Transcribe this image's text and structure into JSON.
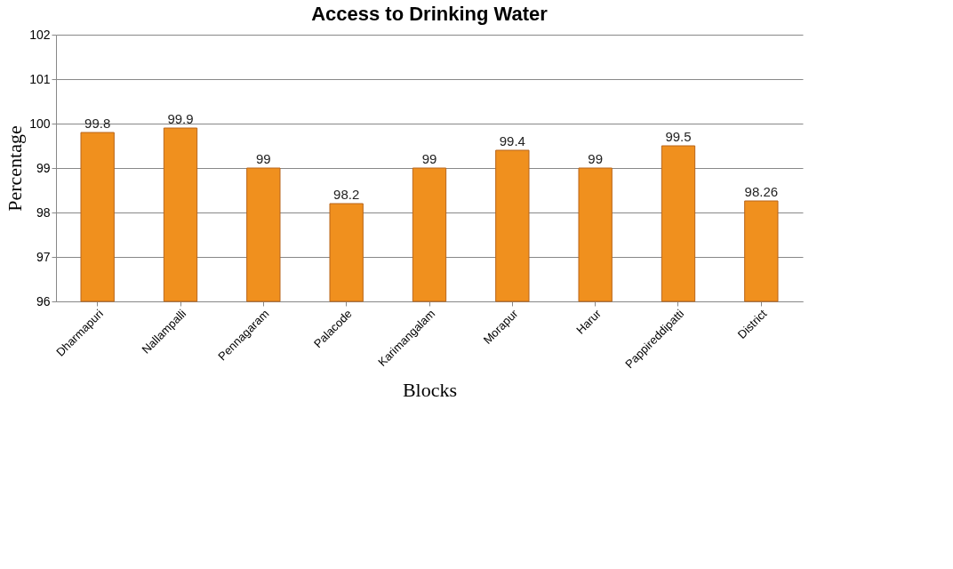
{
  "chart_data": {
    "type": "bar",
    "title": "Access to Drinking Water",
    "xlabel": "Blocks",
    "ylabel": "Percentage",
    "categories": [
      "Dharmapuri",
      "Nallampalli",
      "Pennagaram",
      "Palacode",
      "Karimangalam",
      "Morapur",
      "Harur",
      "Pappireddipatti",
      "District"
    ],
    "values": [
      99.8,
      99.9,
      99,
      98.2,
      99,
      99.4,
      99,
      99.5,
      98.26
    ],
    "color": "#f0901e",
    "ylim": [
      96,
      102
    ],
    "yticks": [
      96,
      97,
      98,
      99,
      100,
      101,
      102
    ],
    "grid": "y",
    "data_labels": true
  }
}
